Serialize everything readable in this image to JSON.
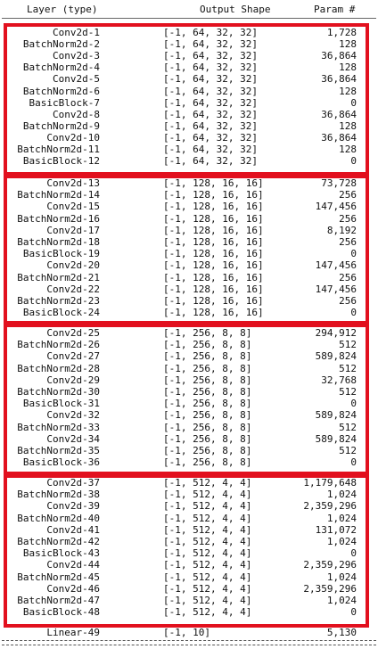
{
  "header": {
    "layer": "Layer (type)",
    "output_shape": "Output Shape",
    "param": "Param #"
  },
  "rows": [
    {
      "name": "Conv2d-1",
      "shape": "[-1, 64, 32, 32]",
      "param": "1,728"
    },
    {
      "name": "BatchNorm2d-2",
      "shape": "[-1, 64, 32, 32]",
      "param": "128"
    },
    {
      "name": "Conv2d-3",
      "shape": "[-1, 64, 32, 32]",
      "param": "36,864"
    },
    {
      "name": "BatchNorm2d-4",
      "shape": "[-1, 64, 32, 32]",
      "param": "128"
    },
    {
      "name": "Conv2d-5",
      "shape": "[-1, 64, 32, 32]",
      "param": "36,864"
    },
    {
      "name": "BatchNorm2d-6",
      "shape": "[-1, 64, 32, 32]",
      "param": "128"
    },
    {
      "name": "BasicBlock-7",
      "shape": "[-1, 64, 32, 32]",
      "param": "0"
    },
    {
      "name": "Conv2d-8",
      "shape": "[-1, 64, 32, 32]",
      "param": "36,864"
    },
    {
      "name": "BatchNorm2d-9",
      "shape": "[-1, 64, 32, 32]",
      "param": "128"
    },
    {
      "name": "Conv2d-10",
      "shape": "[-1, 64, 32, 32]",
      "param": "36,864"
    },
    {
      "name": "BatchNorm2d-11",
      "shape": "[-1, 64, 32, 32]",
      "param": "128"
    },
    {
      "name": "BasicBlock-12",
      "shape": "[-1, 64, 32, 32]",
      "param": "0"
    },
    {
      "name": "Conv2d-13",
      "shape": "[-1, 128, 16, 16]",
      "param": "73,728"
    },
    {
      "name": "BatchNorm2d-14",
      "shape": "[-1, 128, 16, 16]",
      "param": "256"
    },
    {
      "name": "Conv2d-15",
      "shape": "[-1, 128, 16, 16]",
      "param": "147,456"
    },
    {
      "name": "BatchNorm2d-16",
      "shape": "[-1, 128, 16, 16]",
      "param": "256"
    },
    {
      "name": "Conv2d-17",
      "shape": "[-1, 128, 16, 16]",
      "param": "8,192"
    },
    {
      "name": "BatchNorm2d-18",
      "shape": "[-1, 128, 16, 16]",
      "param": "256"
    },
    {
      "name": "BasicBlock-19",
      "shape": "[-1, 128, 16, 16]",
      "param": "0"
    },
    {
      "name": "Conv2d-20",
      "shape": "[-1, 128, 16, 16]",
      "param": "147,456"
    },
    {
      "name": "BatchNorm2d-21",
      "shape": "[-1, 128, 16, 16]",
      "param": "256"
    },
    {
      "name": "Conv2d-22",
      "shape": "[-1, 128, 16, 16]",
      "param": "147,456"
    },
    {
      "name": "BatchNorm2d-23",
      "shape": "[-1, 128, 16, 16]",
      "param": "256"
    },
    {
      "name": "BasicBlock-24",
      "shape": "[-1, 128, 16, 16]",
      "param": "0"
    },
    {
      "name": "Conv2d-25",
      "shape": "[-1, 256, 8, 8]",
      "param": "294,912"
    },
    {
      "name": "BatchNorm2d-26",
      "shape": "[-1, 256, 8, 8]",
      "param": "512"
    },
    {
      "name": "Conv2d-27",
      "shape": "[-1, 256, 8, 8]",
      "param": "589,824"
    },
    {
      "name": "BatchNorm2d-28",
      "shape": "[-1, 256, 8, 8]",
      "param": "512"
    },
    {
      "name": "Conv2d-29",
      "shape": "[-1, 256, 8, 8]",
      "param": "32,768"
    },
    {
      "name": "BatchNorm2d-30",
      "shape": "[-1, 256, 8, 8]",
      "param": "512"
    },
    {
      "name": "BasicBlock-31",
      "shape": "[-1, 256, 8, 8]",
      "param": "0"
    },
    {
      "name": "Conv2d-32",
      "shape": "[-1, 256, 8, 8]",
      "param": "589,824"
    },
    {
      "name": "BatchNorm2d-33",
      "shape": "[-1, 256, 8, 8]",
      "param": "512"
    },
    {
      "name": "Conv2d-34",
      "shape": "[-1, 256, 8, 8]",
      "param": "589,824"
    },
    {
      "name": "BatchNorm2d-35",
      "shape": "[-1, 256, 8, 8]",
      "param": "512"
    },
    {
      "name": "BasicBlock-36",
      "shape": "[-1, 256, 8, 8]",
      "param": "0"
    },
    {
      "name": "Conv2d-37",
      "shape": "[-1, 512, 4, 4]",
      "param": "1,179,648"
    },
    {
      "name": "BatchNorm2d-38",
      "shape": "[-1, 512, 4, 4]",
      "param": "1,024"
    },
    {
      "name": "Conv2d-39",
      "shape": "[-1, 512, 4, 4]",
      "param": "2,359,296"
    },
    {
      "name": "BatchNorm2d-40",
      "shape": "[-1, 512, 4, 4]",
      "param": "1,024"
    },
    {
      "name": "Conv2d-41",
      "shape": "[-1, 512, 4, 4]",
      "param": "131,072"
    },
    {
      "name": "BatchNorm2d-42",
      "shape": "[-1, 512, 4, 4]",
      "param": "1,024"
    },
    {
      "name": "BasicBlock-43",
      "shape": "[-1, 512, 4, 4]",
      "param": "0"
    },
    {
      "name": "Conv2d-44",
      "shape": "[-1, 512, 4, 4]",
      "param": "2,359,296"
    },
    {
      "name": "BatchNorm2d-45",
      "shape": "[-1, 512, 4, 4]",
      "param": "1,024"
    },
    {
      "name": "Conv2d-46",
      "shape": "[-1, 512, 4, 4]",
      "param": "2,359,296"
    },
    {
      "name": "BatchNorm2d-47",
      "shape": "[-1, 512, 4, 4]",
      "param": "1,024"
    },
    {
      "name": "BasicBlock-48",
      "shape": "[-1, 512, 4, 4]",
      "param": "0"
    },
    {
      "name": "Linear-49",
      "shape": "[-1, 10]",
      "param": "5,130"
    }
  ],
  "highlight_color": "#e2101e"
}
